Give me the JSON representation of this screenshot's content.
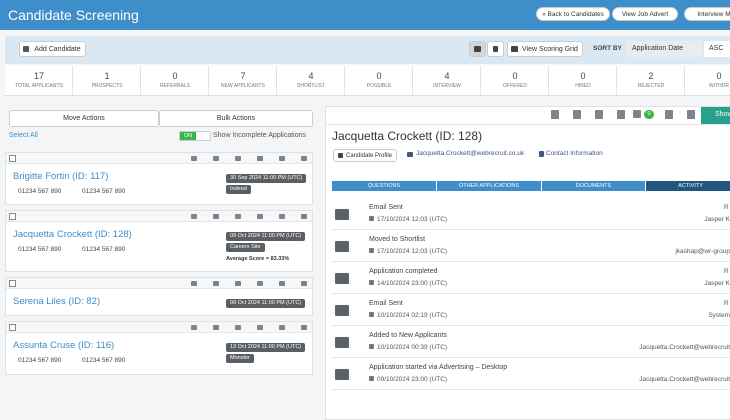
{
  "header": {
    "title": "Candidate Screening",
    "buttons": [
      "« Back to Candidates",
      "View Job Advert",
      "Interview M"
    ]
  },
  "toolbar": {
    "add_candidate": "Add Candidate",
    "view_scoring_grid": "View Scoring Grid",
    "sort_by": "SORT BY",
    "sort_field": "Application Date",
    "sort_order": "ASC"
  },
  "stats": [
    {
      "count": 17,
      "label": "TOTAL APPLICANTS"
    },
    {
      "count": 1,
      "label": "PROSPECTS"
    },
    {
      "count": 0,
      "label": "REFERRALS"
    },
    {
      "count": 7,
      "label": "NEW APPLICANTS"
    },
    {
      "count": 4,
      "label": "SHORTLIST"
    },
    {
      "count": 0,
      "label": "POSSIBLE"
    },
    {
      "count": 4,
      "label": "INTERVIEW"
    },
    {
      "count": 0,
      "label": "OFFERED"
    },
    {
      "count": 0,
      "label": "HIRED"
    },
    {
      "count": 2,
      "label": "REJECTED"
    },
    {
      "count": 0,
      "label": "WITHDR"
    }
  ],
  "left_panel": {
    "move_actions": "Move Actions",
    "bulk_actions": "Bulk Actions",
    "select_all": "Select All",
    "toggle": "ON",
    "show_incomplete": "Show Incomplete Applications"
  },
  "candidates": [
    {
      "name": "Brigitte Fortin (ID: 117)",
      "phones": [
        "01234 567 890",
        "01234 567 890"
      ],
      "date": "30 Sep 2024 11:00 PM (UTC)",
      "source": "Indeed"
    },
    {
      "name": "Jacquetta Crockett (ID: 128)",
      "phones": [
        "01234 567 890",
        "01234 567 890"
      ],
      "date": "09 Oct 2024 11:00 PM (UTC)",
      "source": "Careers Site",
      "score": "Average Score = 83.33%"
    },
    {
      "name": "Serena Liles (ID: 82)",
      "date": "09 Oct 2024 11:00 PM (UTC)"
    },
    {
      "name": "Assunta Cruse (ID: 116)",
      "phones": [
        "01234 567 890",
        "01234 567 890"
      ],
      "date": "13 Oct 2024 11:00 PM (UTC)",
      "source": "Monster"
    }
  ],
  "detail": {
    "comments": 0,
    "show": "Show",
    "name": "Jacquetta Crockett (ID: 128)",
    "profile": "Candidate Profile",
    "email": "Jacquetta.Crockett@webrecruit.co.uk",
    "contact": "Contact Information",
    "tabs": [
      "QUESTIONS",
      "OTHER APPLICATIONS",
      "DOCUMENTS",
      "ACTIVITY"
    ],
    "activity": [
      {
        "title": "Email Sent",
        "date": "17/10/2024 12:03 (UTC)",
        "tag": "R",
        "user": "Jasper K"
      },
      {
        "title": "Moved to Shortlist",
        "date": "17/10/2024 12:03 (UTC)",
        "user": "jkashap@wr-group"
      },
      {
        "title": "Application completed",
        "date": "14/10/2024 23:00 (UTC)",
        "tag": "R",
        "user": "Jasper K"
      },
      {
        "title": "Email Sent",
        "date": "10/10/2024 02:19 (UTC)",
        "tag": "R",
        "user": "System"
      },
      {
        "title": "Added to New Applicants",
        "date": "10/10/2024 00:39 (UTC)",
        "user": "Jacquetta.Crockett@webrecruit"
      },
      {
        "title": "Application started via Advertising – Desktop",
        "date": "09/10/2024 23:00 (UTC)",
        "user": "Jacquetta.Crockett@webrecruit"
      }
    ]
  }
}
